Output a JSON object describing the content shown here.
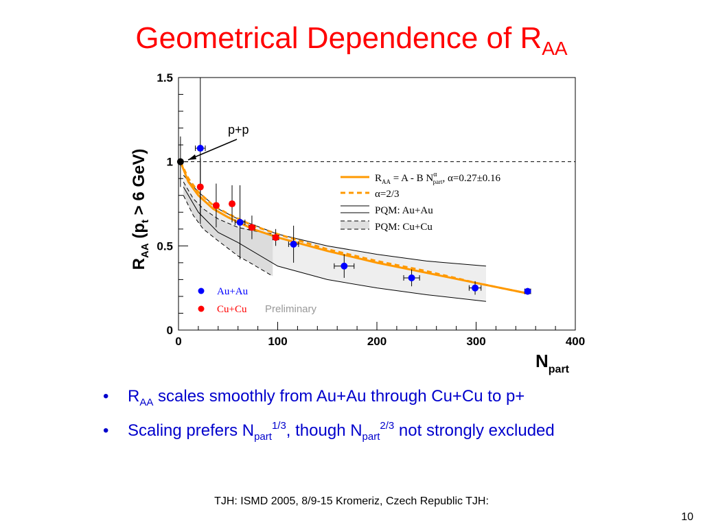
{
  "slide": {
    "title_main": "Geometrical Dependence of  R",
    "title_sub": "AA",
    "bullets": [
      {
        "parts": [
          "R",
          "AA",
          " scales smoothly from Au+Au through Cu+Cu to p+"
        ]
      },
      {
        "parts": [
          "Scaling prefers N",
          "part",
          "1/3",
          ", though N",
          "part",
          "2/3",
          " not strongly excluded"
        ]
      }
    ],
    "bullet_symbol": "•",
    "footer": "TJH: ISMD 2005, 8/9-15 Kromeriz, Czech Republic TJH:",
    "page_number": "10"
  },
  "chart_data": {
    "type": "scatter",
    "xlabel": "N",
    "xlabel_sub": "part",
    "ylabel": "R",
    "ylabel_sub": "AA",
    "ylabel_rest": " (p",
    "ylabel_sub2": "t",
    "ylabel_tail": " > 6 GeV)",
    "xlim": [
      0,
      400
    ],
    "ylim": [
      0,
      1.5
    ],
    "x_ticks": [
      "0",
      "100",
      "200",
      "300",
      "400"
    ],
    "y_ticks": [
      "0",
      "0.5",
      "1",
      "1.5"
    ],
    "reference_line_y": 1.0,
    "annotation": "p+p",
    "watermark": "Preliminary",
    "legend_inner": [
      "Au+Au",
      "Cu+Cu"
    ],
    "legend_curves": [
      {
        "label": "R_AA = A - B N_part^α, α=0.27±0.16",
        "style": "solid-orange"
      },
      {
        "label": "α=2/3",
        "style": "dashed-orange"
      },
      {
        "label": "PQM: Au+Au",
        "style": "solid-black"
      },
      {
        "label": "PQM: Cu+Cu",
        "style": "dashed-black"
      }
    ],
    "legend_text": {
      "fit_a": "R",
      "fit_a_sub": "AA",
      "fit_b": " = A - B N",
      "fit_b_sup": "α",
      "fit_b_sub": "part",
      "fit_c": ", α=0.27±0.16",
      "alpha": "α=2/3",
      "pqm_au": "PQM: Au+Au",
      "pqm_cu": "PQM: Cu+Cu"
    },
    "colors": {
      "au": "#0000ff",
      "cu": "#ff0000",
      "fit": "#ff9900",
      "band": "#e0e0e0",
      "title": "#ff0000",
      "bullet": "#0000cc"
    },
    "series": [
      {
        "name": "Au+Au",
        "color": "#0000ff",
        "points": [
          {
            "x": 22,
            "y": 1.08,
            "ey": 0.45,
            "ex": 5
          },
          {
            "x": 62,
            "y": 0.64,
            "ey": 0.22,
            "ex": 5
          },
          {
            "x": 116,
            "y": 0.51,
            "ey": 0.11,
            "ex": 5
          },
          {
            "x": 167,
            "y": 0.38,
            "ey": 0.07,
            "ex": 10
          },
          {
            "x": 235,
            "y": 0.31,
            "ey": 0.05,
            "ex": 8
          },
          {
            "x": 299,
            "y": 0.25,
            "ey": 0.04,
            "ex": 6
          },
          {
            "x": 352,
            "y": 0.23,
            "ey": 0.02,
            "ex": 3
          }
        ]
      },
      {
        "name": "Cu+Cu",
        "color": "#ff0000",
        "points": [
          {
            "x": 22,
            "y": 0.85,
            "ey": 0.17,
            "ex": 2
          },
          {
            "x": 38,
            "y": 0.74,
            "ey": 0.13,
            "ex": 2
          },
          {
            "x": 54,
            "y": 0.75,
            "ey": 0.11,
            "ex": 2
          },
          {
            "x": 74,
            "y": 0.61,
            "ey": 0.07,
            "ex": 3
          },
          {
            "x": 98,
            "y": 0.55,
            "ey": 0.05,
            "ex": 3
          }
        ]
      },
      {
        "name": "p+p",
        "color": "#000000",
        "points": [
          {
            "x": 2,
            "y": 1.0,
            "ey": 0.15,
            "ex": 0
          }
        ]
      }
    ],
    "curves": {
      "fit": [
        [
          2,
          1.0
        ],
        [
          10,
          0.88
        ],
        [
          20,
          0.8
        ],
        [
          35,
          0.72
        ],
        [
          50,
          0.67
        ],
        [
          75,
          0.6
        ],
        [
          100,
          0.55
        ],
        [
          150,
          0.47
        ],
        [
          200,
          0.4
        ],
        [
          250,
          0.34
        ],
        [
          300,
          0.28
        ],
        [
          350,
          0.22
        ]
      ],
      "alpha23": [
        [
          2,
          1.0
        ],
        [
          10,
          0.9
        ],
        [
          20,
          0.82
        ],
        [
          35,
          0.74
        ],
        [
          50,
          0.69
        ],
        [
          75,
          0.62
        ],
        [
          100,
          0.57
        ],
        [
          150,
          0.48
        ],
        [
          200,
          0.41
        ],
        [
          250,
          0.35
        ],
        [
          300,
          0.28
        ],
        [
          350,
          0.22
        ]
      ],
      "pqm_au_upper": [
        [
          5,
          0.92
        ],
        [
          20,
          0.82
        ],
        [
          40,
          0.72
        ],
        [
          60,
          0.66
        ],
        [
          100,
          0.57
        ],
        [
          150,
          0.5
        ],
        [
          200,
          0.45
        ],
        [
          250,
          0.41
        ],
        [
          310,
          0.38
        ]
      ],
      "pqm_au_lower": [
        [
          5,
          0.85
        ],
        [
          20,
          0.7
        ],
        [
          40,
          0.58
        ],
        [
          60,
          0.52
        ],
        [
          100,
          0.38
        ],
        [
          150,
          0.3
        ],
        [
          200,
          0.25
        ],
        [
          250,
          0.21
        ],
        [
          310,
          0.17
        ]
      ],
      "pqm_cu_upper": [
        [
          5,
          0.88
        ],
        [
          15,
          0.78
        ],
        [
          25,
          0.72
        ],
        [
          40,
          0.66
        ],
        [
          60,
          0.61
        ],
        [
          75,
          0.59
        ],
        [
          95,
          0.57
        ]
      ],
      "pqm_cu_lower": [
        [
          5,
          0.8
        ],
        [
          15,
          0.68
        ],
        [
          25,
          0.6
        ],
        [
          40,
          0.53
        ],
        [
          60,
          0.44
        ],
        [
          75,
          0.39
        ],
        [
          95,
          0.32
        ]
      ]
    }
  }
}
